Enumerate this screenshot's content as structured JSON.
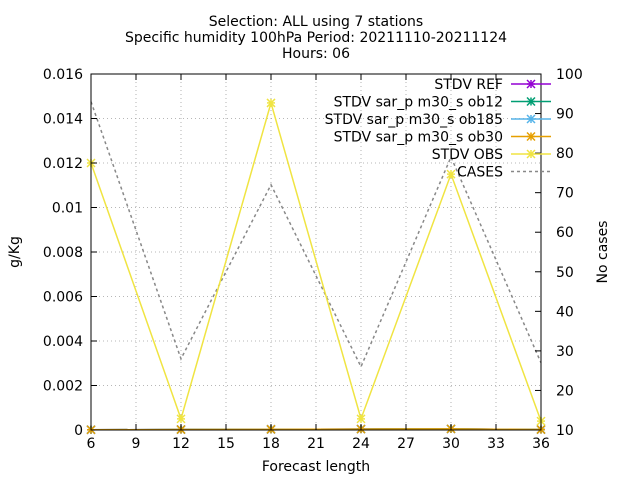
{
  "chart_data": {
    "type": "line",
    "title_lines": [
      "Selection: ALL using     7 stations",
      "Specific humidity 100hPa   Period: 20211110-20211124",
      "Hours: 06"
    ],
    "xlabel": "Forecast length",
    "ylabel": "g/Kg",
    "y2label": "No cases",
    "xlim": [
      6,
      36
    ],
    "xticks": [
      6,
      9,
      12,
      15,
      18,
      21,
      24,
      27,
      30,
      33,
      36
    ],
    "ylim": [
      0,
      0.016
    ],
    "yticks": [
      0,
      0.002,
      0.004,
      0.006,
      0.008,
      0.01,
      0.012,
      0.014,
      0.016
    ],
    "ytick_labels": [
      "0",
      "0.002",
      "0.004",
      "0.006",
      "0.008",
      "0.01",
      "0.012",
      "0.014",
      "0.016"
    ],
    "y2lim": [
      10,
      100
    ],
    "y2ticks": [
      10,
      20,
      30,
      40,
      50,
      60,
      70,
      80,
      90,
      100
    ],
    "grid": true,
    "legend_position": "top-right",
    "x": [
      6,
      12,
      18,
      24,
      30,
      36
    ],
    "series": [
      {
        "name": "STDV REF",
        "color": "#9400d3",
        "marker": "x",
        "axis": "y1",
        "values": [
          1e-05,
          2e-05,
          3e-05,
          4e-05,
          5e-05,
          2e-05
        ]
      },
      {
        "name": "STDV sar_p m30_s ob12",
        "color": "#009e73",
        "marker": "x",
        "axis": "y1",
        "values": [
          1e-05,
          2e-05,
          3e-05,
          4e-05,
          5e-05,
          2e-05
        ]
      },
      {
        "name": "STDV sar_p m30_s ob185",
        "color": "#56b4e9",
        "marker": "x",
        "axis": "y1",
        "values": [
          1e-05,
          2e-05,
          3e-05,
          4e-05,
          5e-05,
          2e-05
        ]
      },
      {
        "name": "STDV sar_p m30_s ob30",
        "color": "#e69f00",
        "marker": "x",
        "axis": "y1",
        "values": [
          1e-05,
          2e-05,
          3e-05,
          4e-05,
          5e-05,
          2e-05
        ]
      },
      {
        "name": "STDV OBS",
        "color": "#f0e442",
        "marker": "x",
        "axis": "y1",
        "values": [
          0.012,
          0.0005,
          0.0147,
          0.0005,
          0.0115,
          0.0004
        ]
      },
      {
        "name": "CASES",
        "color": "#888888",
        "marker": "none",
        "dashed": true,
        "axis": "y2",
        "values": [
          93,
          28,
          72,
          26,
          79,
          27
        ]
      }
    ]
  }
}
